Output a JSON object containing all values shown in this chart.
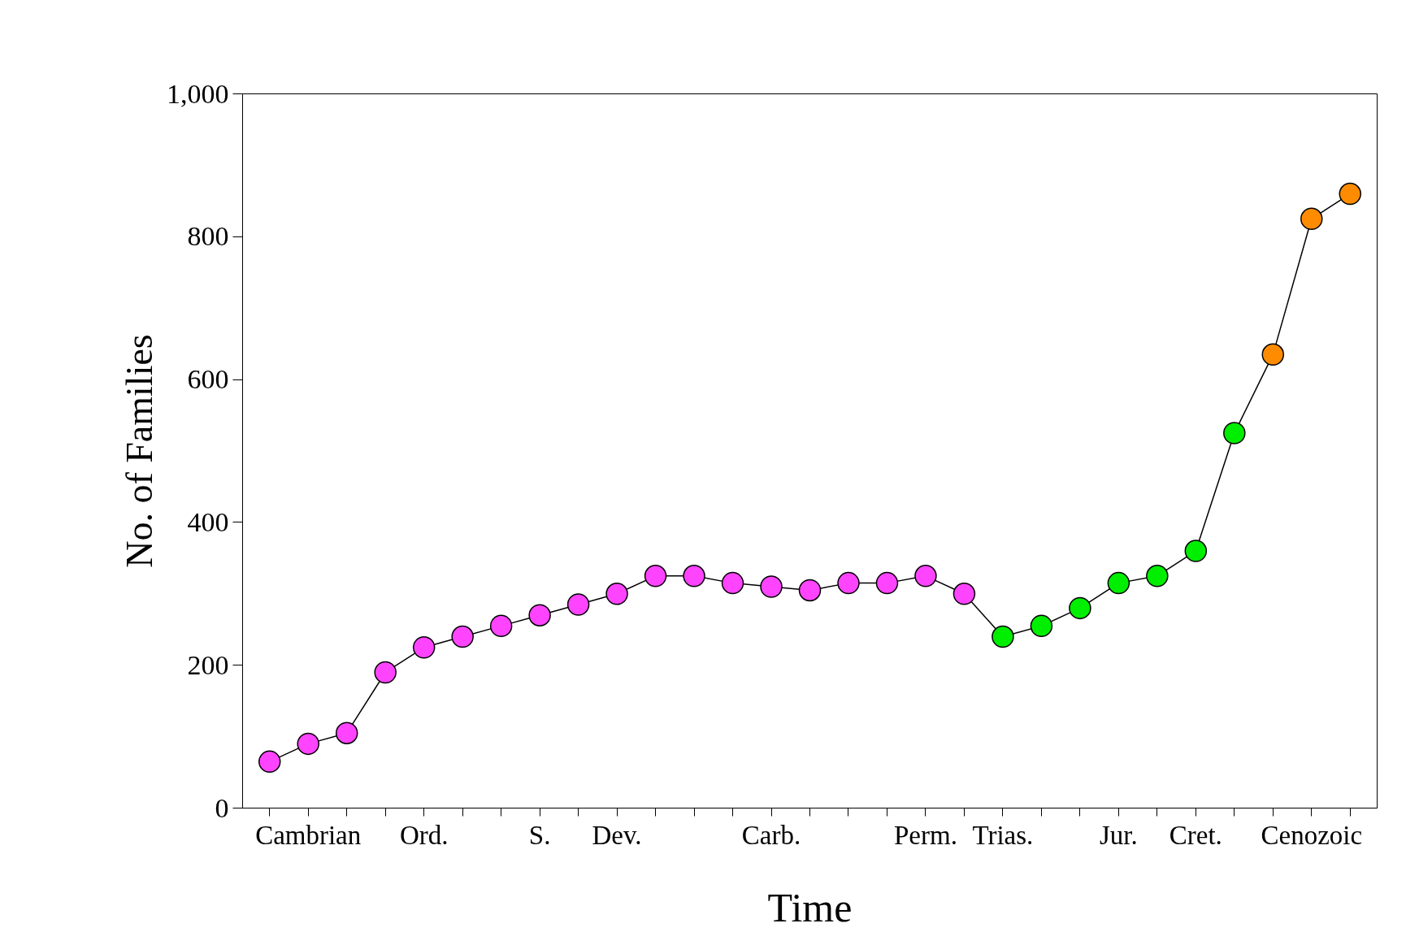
{
  "chart_data": {
    "type": "line",
    "xlabel": "Time",
    "ylabel": "No. of Families",
    "ylim": [
      0,
      1000
    ],
    "yticks": [
      0,
      200,
      400,
      600,
      800,
      {
        "value": 1000,
        "label": "1,000"
      }
    ],
    "grid": false,
    "marker": "circle",
    "line_style": "solid",
    "categories": [
      null,
      "Cambrian",
      null,
      null,
      "Ord.",
      null,
      null,
      "S.",
      null,
      "Dev.",
      null,
      null,
      null,
      "Carb.",
      null,
      null,
      null,
      "Perm.",
      null,
      "Trias.",
      null,
      null,
      "Jur.",
      null,
      "Cret.",
      null,
      null,
      "Cenozoic",
      null
    ],
    "series": [
      {
        "color": "#000000",
        "values": [
          65,
          90,
          105,
          190,
          225,
          240,
          255,
          270,
          285,
          300,
          325,
          325,
          315,
          310,
          305,
          315,
          315,
          325,
          300,
          240,
          255,
          280,
          315,
          325,
          360,
          525,
          635,
          825,
          860
        ],
        "colors": [
          "#ff44ff",
          "#ff44ff",
          "#ff44ff",
          "#ff44ff",
          "#ff44ff",
          "#ff44ff",
          "#ff44ff",
          "#ff44ff",
          "#ff44ff",
          "#ff44ff",
          "#ff44ff",
          "#ff44ff",
          "#ff44ff",
          "#ff44ff",
          "#ff44ff",
          "#ff44ff",
          "#ff44ff",
          "#ff44ff",
          "#ff44ff",
          "#00ee00",
          "#00ee00",
          "#00ee00",
          "#00ee00",
          "#00ee00",
          "#00ee00",
          "#00ee00",
          "#ff8c00",
          "#ff8c00",
          "#ff8c00"
        ]
      }
    ]
  }
}
